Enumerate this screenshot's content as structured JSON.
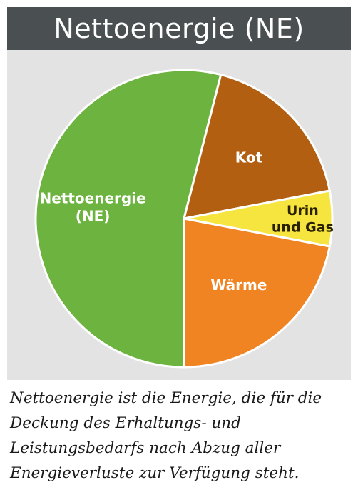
{
  "chart_data": {
    "type": "pie",
    "title": "Nettoenergie (NE)",
    "slices": [
      {
        "label": "Nettoenergie (NE)",
        "value": 54,
        "color": "#6db33f"
      },
      {
        "label": "Kot",
        "value": 18,
        "color": "#b35f12"
      },
      {
        "label": "Urin und Gas",
        "value": 6,
        "color": "#f6e43f"
      },
      {
        "label": "Wärme",
        "value": 22,
        "color": "#f08423"
      }
    ]
  },
  "caption": "Nettoenergie ist die Energie, die für die Deckung des Erhaltungs- und Leistungsbedarfs nach Abzug aller Energieverluste zur Verfügung steht."
}
